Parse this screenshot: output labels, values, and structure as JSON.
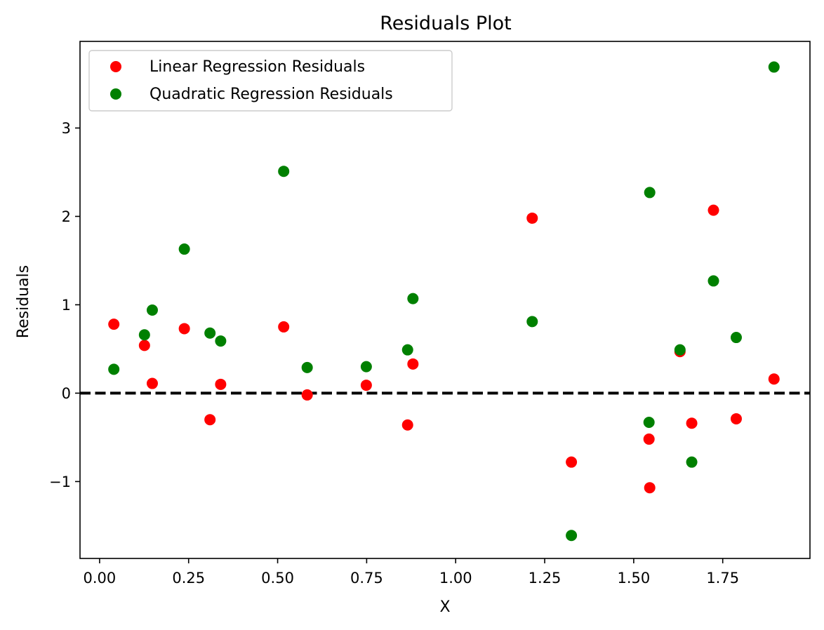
{
  "chart_data": {
    "type": "scatter",
    "title": "Residuals Plot",
    "xlabel": "X",
    "ylabel": "Residuals",
    "xlim": [
      -0.055,
      1.995
    ],
    "ylim": [
      -1.87,
      3.98
    ],
    "xticks": [
      0.0,
      0.25,
      0.5,
      0.75,
      1.0,
      1.25,
      1.5,
      1.75
    ],
    "xtick_labels": [
      "0.00",
      "0.25",
      "0.50",
      "0.75",
      "1.00",
      "1.25",
      "1.50",
      "1.75"
    ],
    "yticks": [
      -1,
      0,
      1,
      2,
      3
    ],
    "ytick_labels": [
      "−1",
      "0",
      "1",
      "2",
      "3"
    ],
    "grid": false,
    "legend_position": "top-left",
    "reference_line": {
      "y": 0,
      "style": "dashed",
      "color": "#000000"
    },
    "series": [
      {
        "name": "Linear Regression Residuals",
        "color": "#ff0000",
        "points": [
          [
            0.04,
            0.78
          ],
          [
            0.126,
            0.54
          ],
          [
            0.148,
            0.11
          ],
          [
            0.238,
            0.73
          ],
          [
            0.31,
            -0.3
          ],
          [
            0.34,
            0.1
          ],
          [
            0.517,
            0.75
          ],
          [
            0.583,
            -0.02
          ],
          [
            0.749,
            0.09
          ],
          [
            0.865,
            -0.36
          ],
          [
            0.88,
            0.33
          ],
          [
            1.215,
            1.98
          ],
          [
            1.325,
            -0.78
          ],
          [
            1.543,
            -0.52
          ],
          [
            1.545,
            -1.07
          ],
          [
            1.63,
            0.47
          ],
          [
            1.663,
            -0.34
          ],
          [
            1.724,
            2.07
          ],
          [
            1.788,
            -0.29
          ],
          [
            1.894,
            0.16
          ]
        ]
      },
      {
        "name": "Quadratic Regression Residuals",
        "color": "#008000",
        "points": [
          [
            0.04,
            0.27
          ],
          [
            0.126,
            0.66
          ],
          [
            0.148,
            0.94
          ],
          [
            0.238,
            1.63
          ],
          [
            0.31,
            0.68
          ],
          [
            0.34,
            0.59
          ],
          [
            0.517,
            2.51
          ],
          [
            0.583,
            0.29
          ],
          [
            0.749,
            0.3
          ],
          [
            0.865,
            0.49
          ],
          [
            0.88,
            1.07
          ],
          [
            1.215,
            0.81
          ],
          [
            1.325,
            -1.61
          ],
          [
            1.543,
            -0.33
          ],
          [
            1.545,
            2.27
          ],
          [
            1.63,
            0.49
          ],
          [
            1.663,
            -0.78
          ],
          [
            1.724,
            1.27
          ],
          [
            1.788,
            0.63
          ],
          [
            1.894,
            3.69
          ]
        ]
      }
    ]
  }
}
